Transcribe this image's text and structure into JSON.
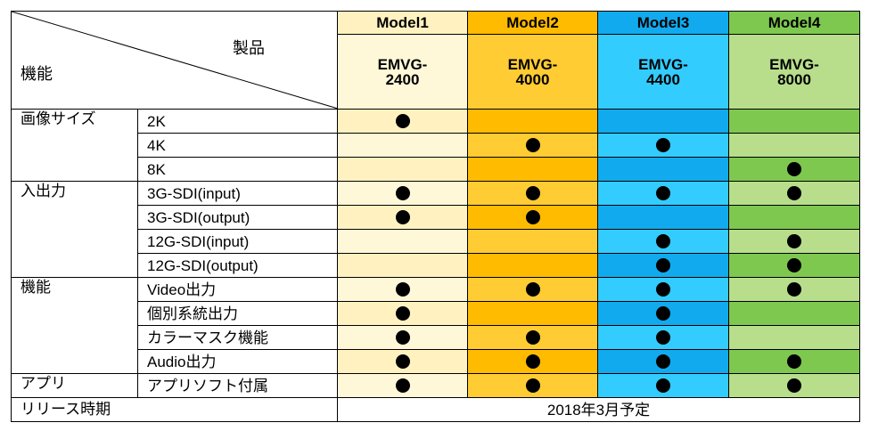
{
  "corner": {
    "products_label": "製品",
    "features_label": "機能"
  },
  "models": [
    {
      "name": "Model1",
      "product": [
        "EMVG-",
        "2400"
      ],
      "header_color": "#fff2c0",
      "body_color": "#fff8d8"
    },
    {
      "name": "Model2",
      "product": [
        "EMVG-",
        "4000"
      ],
      "header_color": "#ffbb00",
      "body_color": "#ffcc33"
    },
    {
      "name": "Model3",
      "product": [
        "EMVG-",
        "4400"
      ],
      "header_color": "#11aaee",
      "body_color": "#33ccff"
    },
    {
      "name": "Model4",
      "product": [
        "EMVG-",
        "8000"
      ],
      "header_color": "#7ec850",
      "body_color": "#b8de8c"
    }
  ],
  "row_colors": {
    "light": [
      "#fff8d8",
      "#ffcc33",
      "#33ccff",
      "#b8de8c"
    ],
    "dark": [
      "#fff2c0",
      "#ffbb00",
      "#11aaee",
      "#7ec850"
    ]
  },
  "categories": [
    {
      "label": "画像サイズ",
      "rows": [
        {
          "feature": "2K",
          "marks": [
            true,
            false,
            false,
            false
          ],
          "shade": "dark"
        },
        {
          "feature": "4K",
          "marks": [
            false,
            true,
            true,
            false
          ],
          "shade": "light"
        },
        {
          "feature": "8K",
          "marks": [
            false,
            false,
            false,
            true
          ],
          "shade": "dark"
        }
      ]
    },
    {
      "label": "入出力",
      "rows": [
        {
          "feature": "3G-SDI(input)",
          "marks": [
            true,
            true,
            true,
            true
          ],
          "shade": "light"
        },
        {
          "feature": "3G-SDI(output)",
          "marks": [
            true,
            true,
            false,
            false
          ],
          "shade": "dark"
        },
        {
          "feature": "12G-SDI(input)",
          "marks": [
            false,
            false,
            true,
            true
          ],
          "shade": "light"
        },
        {
          "feature": "12G-SDI(output)",
          "marks": [
            false,
            false,
            true,
            true
          ],
          "shade": "dark"
        }
      ]
    },
    {
      "label": "機能",
      "rows": [
        {
          "feature": "Video出力",
          "marks": [
            true,
            true,
            true,
            true
          ],
          "shade": "light"
        },
        {
          "feature": "個別系統出力",
          "marks": [
            true,
            false,
            true,
            false
          ],
          "shade": "dark"
        },
        {
          "feature": "カラーマスク機能",
          "marks": [
            true,
            true,
            true,
            false
          ],
          "shade": "light"
        },
        {
          "feature": "Audio出力",
          "marks": [
            true,
            true,
            true,
            true
          ],
          "shade": "dark"
        }
      ]
    },
    {
      "label": "アプリ",
      "rows": [
        {
          "feature": "アプリソフト付属",
          "marks": [
            true,
            true,
            true,
            true
          ],
          "shade": "light"
        }
      ]
    }
  ],
  "release": {
    "label": "リリース時期",
    "value": "2018年3月予定"
  }
}
